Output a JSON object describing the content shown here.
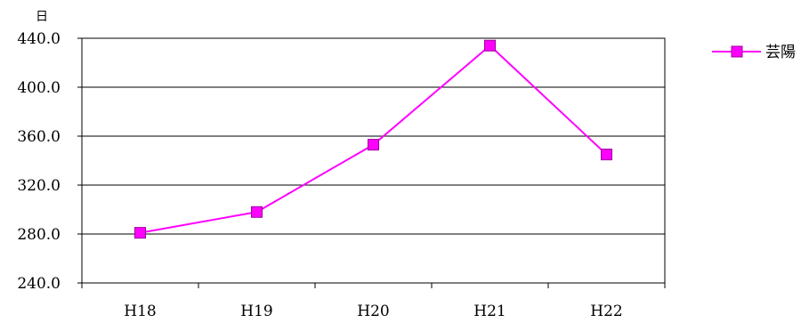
{
  "chart_data": {
    "type": "line",
    "categories": [
      "H18",
      "H19",
      "H20",
      "H21",
      "H22"
    ],
    "series": [
      {
        "name": "芸陽",
        "values": [
          281,
          298,
          353,
          434,
          345
        ],
        "color": "#ff00ff",
        "marker": "square"
      }
    ],
    "ylabel": "日",
    "ylim": [
      240,
      440
    ],
    "yticks": [
      "240.0",
      "280.0",
      "320.0",
      "360.0",
      "400.0",
      "440.0"
    ],
    "ytick_values": [
      240,
      280,
      320,
      360,
      400,
      440
    ],
    "grid": true,
    "legend_position": "right"
  }
}
